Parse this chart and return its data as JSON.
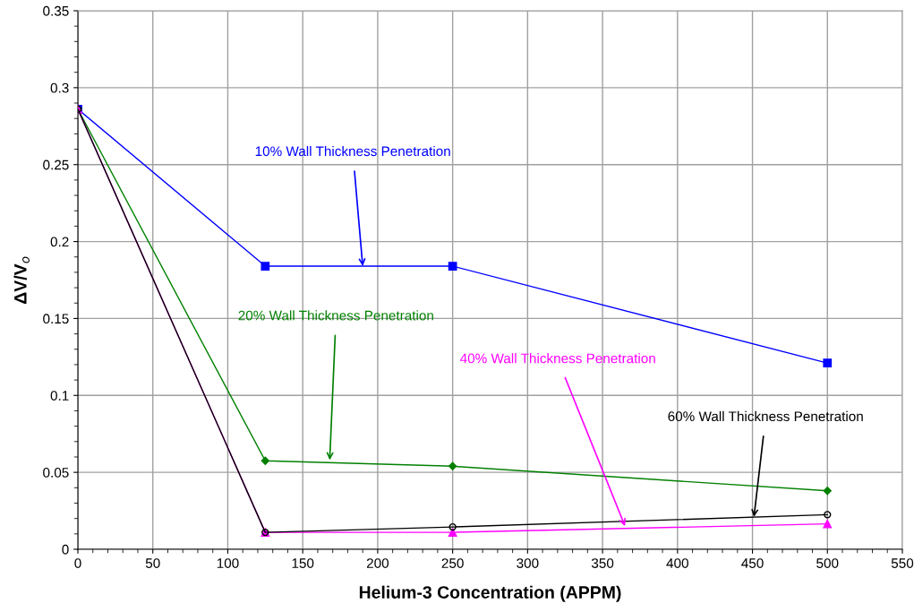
{
  "chart_data": {
    "type": "line",
    "xlabel": "Helium-3 Concentration (APPM)",
    "ylabel": "ΔV/V$_{o}$",
    "x": [
      0,
      125,
      250,
      500
    ],
    "series": [
      {
        "color": "#0000ff",
        "marker": "square",
        "values": [
          0.286,
          0.184,
          0.184,
          0.121
        ]
      },
      {
        "color": "#008000",
        "marker": "diamond",
        "values": [
          0.286,
          0.0575,
          0.054,
          0.038
        ]
      },
      {
        "color": "#ff00ff",
        "marker": "triangle",
        "values": [
          0.286,
          0.011,
          0.011,
          0.0165
        ]
      },
      {
        "color": "#000000",
        "marker": "circle",
        "values": [
          0.286,
          0.011,
          0.0145,
          0.0225
        ]
      }
    ],
    "annotations": [
      {
        "text": "10% Wall Thickness Penetration",
        "x": 190,
        "y": 0.184
      },
      {
        "text": "20% Wall Thickness Penetration",
        "x": 168,
        "y": 0.058
      },
      {
        "text": "40% Wall Thickness Penetration",
        "x": 365,
        "y": 0.015
      },
      {
        "text": "60% Wall Thickness Penetration",
        "x": 451,
        "y": 0.021
      }
    ],
    "xlim": [
      0,
      550
    ],
    "xticks": [
      0,
      50,
      100,
      150,
      200,
      250,
      300,
      350,
      400,
      450,
      500,
      550
    ],
    "ylim": [
      0,
      0.35
    ],
    "yticks": [
      0,
      0.05,
      0.1,
      0.15,
      0.2,
      0.25,
      0.3,
      0.35
    ],
    "grid": true,
    "line_style": "solid"
  }
}
